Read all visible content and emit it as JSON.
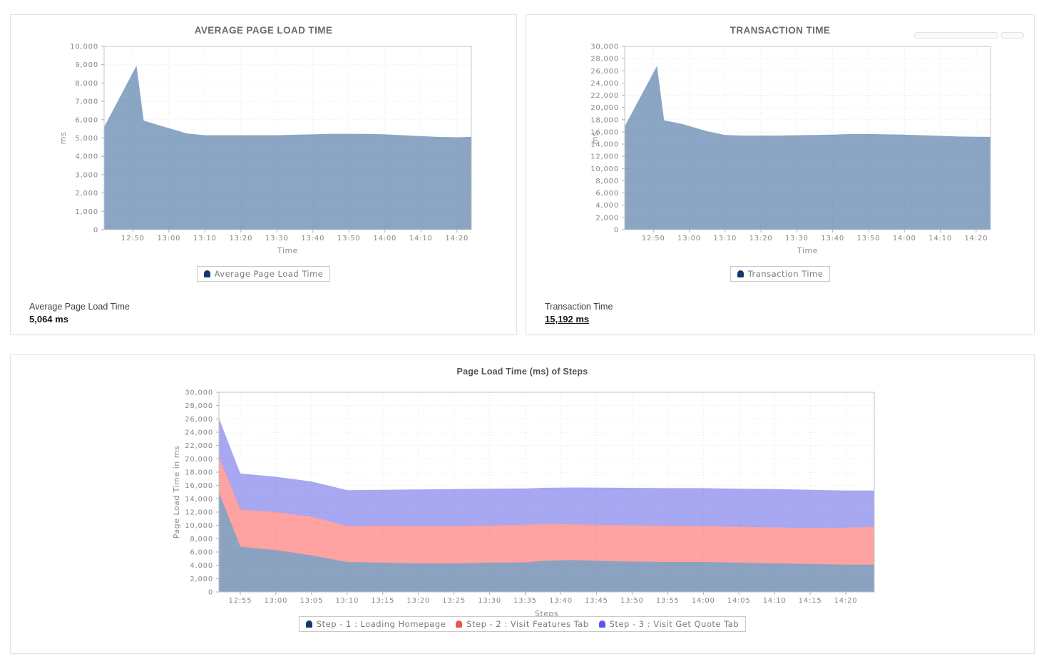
{
  "chart_data": [
    {
      "type": "area",
      "title": "AVERAGE PAGE LOAD TIME",
      "xlabel": "Time",
      "ylabel": "ms",
      "ylim": [
        0,
        10000
      ],
      "ytick_step": 1000,
      "xdomain": [
        762,
        864
      ],
      "xtick_minutes": [
        770,
        780,
        790,
        800,
        810,
        820,
        830,
        840,
        850,
        860
      ],
      "xtick_labels": [
        "12:50",
        "13:00",
        "13:10",
        "13:20",
        "13:30",
        "13:40",
        "13:50",
        "14:00",
        "14:10",
        "14:20"
      ],
      "grid": "dotted",
      "legend_position": "bottom",
      "series": [
        {
          "name": "Average Page Load Time",
          "color": "#8ba5c4",
          "marker_color": "#14386e",
          "x": [
            762,
            771,
            773,
            778,
            785,
            790,
            795,
            800,
            805,
            810,
            815,
            820,
            825,
            830,
            835,
            840,
            845,
            850,
            855,
            860,
            864
          ],
          "values": [
            5600,
            8950,
            5950,
            5650,
            5250,
            5150,
            5150,
            5150,
            5150,
            5150,
            5180,
            5200,
            5230,
            5230,
            5220,
            5200,
            5150,
            5100,
            5060,
            5040,
            5064
          ]
        }
      ],
      "summary": {
        "label": "Average Page Load Time",
        "value": "5,064 ms"
      }
    },
    {
      "type": "area",
      "title": "TRANSACTION TIME",
      "xlabel": "Time",
      "ylabel": "ms",
      "ylim": [
        0,
        30000
      ],
      "ytick_step": 2000,
      "xdomain": [
        762,
        864
      ],
      "xtick_minutes": [
        770,
        780,
        790,
        800,
        810,
        820,
        830,
        840,
        850,
        860
      ],
      "xtick_labels": [
        "12:50",
        "13:00",
        "13:10",
        "13:20",
        "13:30",
        "13:40",
        "13:50",
        "14:00",
        "14:10",
        "14:20"
      ],
      "grid": "dotted",
      "legend_position": "bottom",
      "series": [
        {
          "name": "Transaction Time",
          "color": "#8ba5c4",
          "marker_color": "#14386e",
          "x": [
            762,
            771,
            773,
            778,
            785,
            790,
            795,
            800,
            805,
            810,
            815,
            820,
            825,
            830,
            835,
            840,
            845,
            850,
            855,
            860,
            864
          ],
          "values": [
            16900,
            26800,
            17900,
            17300,
            16100,
            15500,
            15400,
            15400,
            15400,
            15450,
            15500,
            15550,
            15650,
            15650,
            15600,
            15550,
            15450,
            15350,
            15250,
            15200,
            15192
          ]
        }
      ],
      "summary": {
        "label": "Transaction Time",
        "value": "15,192 ms"
      }
    },
    {
      "type": "stacked-area",
      "title": "Page Load Time (ms) of Steps",
      "xlabel": "Steps",
      "ylabel": "Page Load Time in ms",
      "ylim": [
        0,
        30000
      ],
      "ytick_step": 2000,
      "xdomain": [
        772,
        864
      ],
      "xtick_minutes": [
        775,
        780,
        785,
        790,
        795,
        800,
        805,
        810,
        815,
        820,
        825,
        830,
        835,
        840,
        845,
        850,
        855,
        860
      ],
      "xtick_labels": [
        "12:55",
        "13:00",
        "13:05",
        "13:10",
        "13:15",
        "13:20",
        "13:25",
        "13:30",
        "13:35",
        "13:40",
        "13:45",
        "13:50",
        "13:55",
        "14:00",
        "14:05",
        "14:10",
        "14:15",
        "14:20"
      ],
      "grid": "dotted",
      "legend_position": "bottom",
      "x": [
        772,
        775,
        780,
        785,
        790,
        795,
        800,
        805,
        810,
        815,
        818,
        822,
        828,
        835,
        840,
        845,
        850,
        855,
        860,
        864
      ],
      "series": [
        {
          "name": "Step - 1 : Loading Homepage",
          "color": "#8ba3c0",
          "marker_color": "#14386e",
          "values": [
            15000,
            6800,
            6300,
            5500,
            4500,
            4400,
            4300,
            4300,
            4400,
            4450,
            4700,
            4800,
            4600,
            4500,
            4500,
            4400,
            4300,
            4200,
            4100,
            4100
          ]
        },
        {
          "name": "Step - 2 : Visit Features Tab",
          "color": "#ffa2a2",
          "marker_color": "#f0524d",
          "values": [
            5300,
            5600,
            5700,
            5800,
            5400,
            5550,
            5600,
            5600,
            5600,
            5650,
            5500,
            5350,
            5450,
            5450,
            5400,
            5400,
            5400,
            5400,
            5550,
            5700
          ]
        },
        {
          "name": "Step - 3 : Visit Get Quote Tab",
          "color": "#a7a7f2",
          "marker_color": "#5a57ee",
          "values": [
            5800,
            5400,
            5300,
            5300,
            5400,
            5400,
            5500,
            5550,
            5500,
            5450,
            5450,
            5550,
            5600,
            5650,
            5700,
            5700,
            5750,
            5750,
            5600,
            5450
          ]
        }
      ]
    }
  ],
  "colors": {
    "area_blue": "#8ba5c4",
    "area_pink": "#ffa2a2",
    "area_purple": "#a7a7f2",
    "tick_text": "#878787",
    "title_text": "#6a6a6a"
  }
}
